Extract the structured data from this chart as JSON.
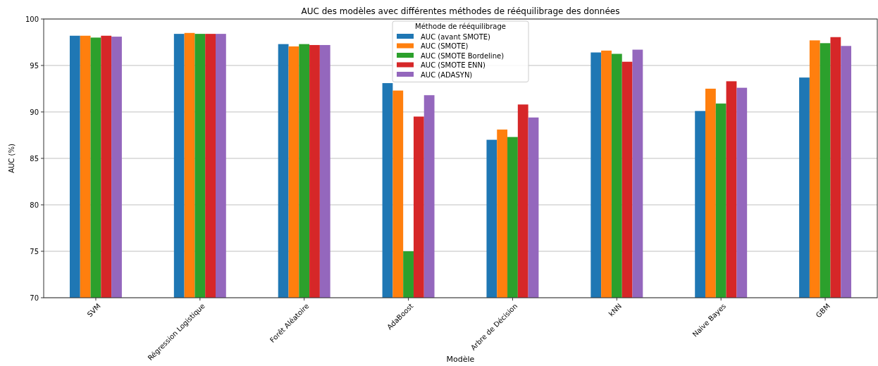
{
  "chart_data": {
    "type": "bar",
    "title": "AUC des modèles avec différentes méthodes de rééquilibrage des données",
    "xlabel": "Modèle",
    "ylabel": "AUC (%)",
    "legend_title": "Méthode de rééquilibrage",
    "categories": [
      "SVM",
      "Régression Logistique",
      "Forêt Aléatoire",
      "AdaBoost",
      "Arbre de Décision",
      "kNN",
      "Naive Bayes",
      "GBM"
    ],
    "series": [
      {
        "name": "AUC (avant SMOTE)",
        "color": "#1f77b4",
        "values": [
          98.2,
          98.4,
          97.3,
          93.1,
          87.0,
          96.4,
          90.1,
          93.7
        ]
      },
      {
        "name": "AUC (SMOTE)",
        "color": "#ff7f0e",
        "values": [
          98.2,
          98.5,
          97.05,
          92.3,
          88.1,
          96.6,
          92.5,
          97.7
        ]
      },
      {
        "name": "AUC (SMOTE Bordeline)",
        "color": "#2ca02c",
        "values": [
          98.0,
          98.4,
          97.3,
          75.0,
          87.3,
          96.25,
          90.9,
          97.4
        ]
      },
      {
        "name": "AUC (SMOTE ENN)",
        "color": "#d62728",
        "values": [
          98.2,
          98.4,
          97.2,
          89.5,
          90.8,
          95.4,
          93.3,
          98.05
        ]
      },
      {
        "name": "AUC (ADASYN)",
        "color": "#9467bd",
        "values": [
          98.1,
          98.4,
          97.2,
          91.8,
          89.4,
          96.7,
          92.6,
          97.1
        ]
      }
    ],
    "ylim": [
      70,
      100
    ],
    "yticks": [
      70,
      75,
      80,
      85,
      90,
      95,
      100
    ],
    "grid": "y",
    "legend": "top"
  }
}
